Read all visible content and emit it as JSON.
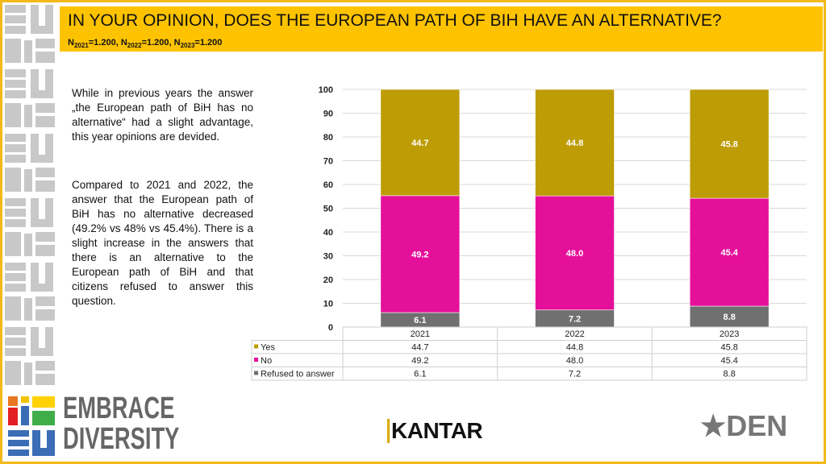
{
  "header": {
    "title": "IN YOUR OPINION, DOES THE EUROPEAN PATH OF BIH HAVE AN ALTERNATIVE?",
    "sample": [
      {
        "label": "N",
        "year": "2021",
        "value": "=1.200, "
      },
      {
        "label": "N",
        "year": "2022",
        "value": "=1.200, "
      },
      {
        "label": "N",
        "year": "2023",
        "value": "=1.200"
      }
    ]
  },
  "commentary": {
    "paragraph1": "While in previous years the answer „the European path of BiH has no alternative“ had a slight advantage, this year opinions are devided.",
    "paragraph2": "Compared to 2021 and 2022, the answer that the European path of BiH has no alternative decreased (49.2% vs 48% vs 45.4%). There is a slight increase in the answers that there is an alternative to the European path of BiH and that citizens refused to answer this question."
  },
  "chart_data": {
    "type": "bar",
    "stacked": true,
    "categories": [
      "2021",
      "2022",
      "2023"
    ],
    "series": [
      {
        "name": "Refused to answer",
        "values": [
          6.1,
          7.2,
          8.8
        ],
        "labels": [
          "6.1",
          "7.2",
          "8.8"
        ],
        "color": "#707070"
      },
      {
        "name": "No",
        "values": [
          49.2,
          48.0,
          45.4
        ],
        "labels": [
          "49.2",
          "48.0",
          "45.4"
        ],
        "color": "#e5109a"
      },
      {
        "name": "Yes",
        "values": [
          44.7,
          44.8,
          45.8
        ],
        "labels": [
          "44.7",
          "44.8",
          "45.8"
        ],
        "color": "#bd9c06"
      }
    ],
    "ylim": [
      0,
      100
    ],
    "yticks": [
      "0",
      "10",
      "20",
      "30",
      "40",
      "50",
      "60",
      "70",
      "80",
      "90",
      "100"
    ],
    "grid": true,
    "legend": "data-table-below",
    "table_rows": [
      "Yes",
      "No",
      "Refused to answer"
    ]
  },
  "logos": {
    "embrace": "EMBRACE DIVERSITY",
    "embrace_line1": "EMBRACE",
    "embrace_line2": "DIVERSITY",
    "kantar": "KANTAR",
    "den": "DEN"
  },
  "colors": {
    "header": "#fdc300",
    "frame": "#f3b81c"
  }
}
